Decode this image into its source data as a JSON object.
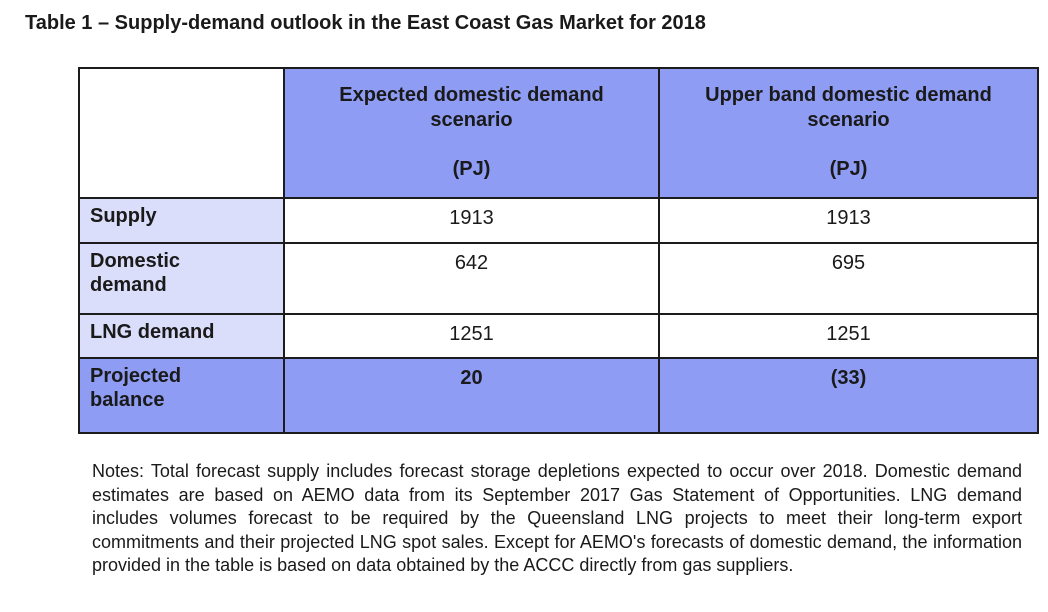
{
  "page": {
    "title": "Table 1 – Supply-demand outlook in the East Coast Gas Market for 2018"
  },
  "table": {
    "headers": [
      {
        "title": "Expected domestic demand scenario",
        "unit": "(PJ)"
      },
      {
        "title": "Upper band domestic demand scenario",
        "unit": "(PJ)"
      }
    ],
    "rows": [
      {
        "label": "Supply",
        "values": [
          "1913",
          "1913"
        ]
      },
      {
        "label": "Domestic demand",
        "values": [
          "642",
          "695"
        ]
      },
      {
        "label": "LNG demand",
        "values": [
          "1251",
          "1251"
        ]
      },
      {
        "label": "Projected balance",
        "values": [
          "20",
          "(33)"
        ]
      }
    ]
  },
  "notes": "Notes: Total forecast supply includes forecast storage depletions expected to occur over 2018. Domestic demand estimates are based on AEMO data from its September 2017 Gas Statement of Opportunities. LNG demand includes volumes forecast to be required by the Queensland LNG projects to meet their long-term export commitments and their projected LNG spot sales. Except for AEMO's forecasts of domestic demand, the information provided in the table is based on data obtained by the ACCC directly from gas suppliers.",
  "colors": {
    "header_fill": "#8e9cf4",
    "label_fill": "#dadefa",
    "balance_row_fill": "#8e9cf4",
    "border": "#1c1c1c"
  }
}
